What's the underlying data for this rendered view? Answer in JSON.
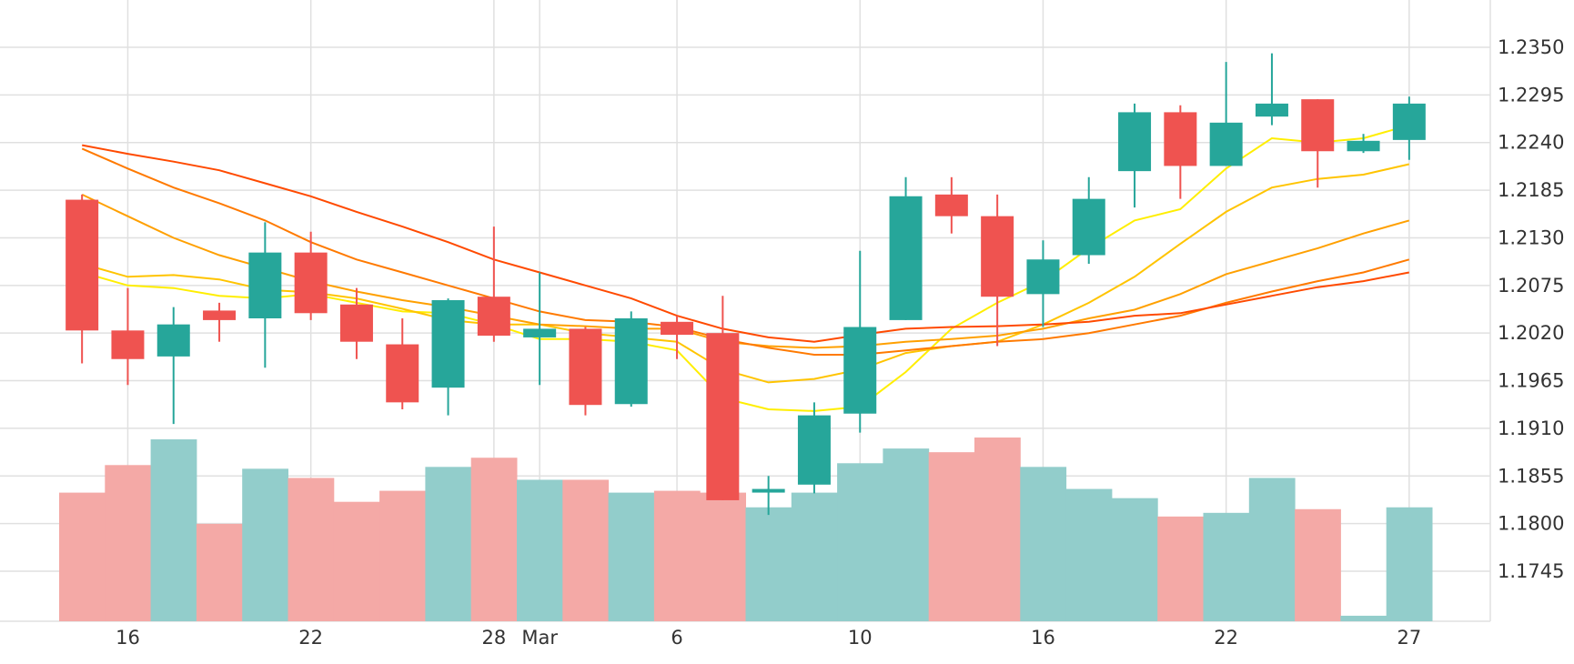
{
  "colors": {
    "up": "#26a69a",
    "down": "#ef5350",
    "volume_up": "#92cdcb",
    "volume_down": "#f4a9a6",
    "grid": "#e0e0e0",
    "text": "#333333"
  },
  "chart_data": {
    "type": "candlestick",
    "title": "",
    "xlabel": "",
    "ylabel": "",
    "ylim": [
      1.168,
      1.238
    ],
    "grid": true,
    "legend": "none",
    "y_ticks": [
      "1.2350",
      "1.2295",
      "1.2240",
      "1.2185",
      "1.2130",
      "1.2075",
      "1.2020",
      "1.1965",
      "1.1910",
      "1.1855",
      "1.1800",
      "1.1745"
    ],
    "x_ticks": [
      {
        "label": "16",
        "index": 1.5
      },
      {
        "label": "22",
        "index": 5.5
      },
      {
        "label": "28",
        "index": 9.5
      },
      {
        "label": "Mar",
        "index": 10.5
      },
      {
        "label": "6",
        "index": 13.5
      },
      {
        "label": "10",
        "index": 17.5
      },
      {
        "label": "16",
        "index": 21.5
      },
      {
        "label": "22",
        "index": 25.5
      },
      {
        "label": "27",
        "index": 29.5
      }
    ],
    "candles": [
      {
        "o": 1.2174,
        "h": 1.218,
        "l": 1.1985,
        "c": 1.2023
      },
      {
        "o": 1.2023,
        "h": 1.2072,
        "l": 1.196,
        "c": 1.199
      },
      {
        "o": 1.1993,
        "h": 1.205,
        "l": 1.1915,
        "c": 1.203
      },
      {
        "o": 1.2046,
        "h": 1.2055,
        "l": 1.201,
        "c": 1.2035
      },
      {
        "o": 1.2037,
        "h": 1.2148,
        "l": 1.198,
        "c": 1.2113
      },
      {
        "o": 1.2113,
        "h": 1.2137,
        "l": 1.2035,
        "c": 1.2043
      },
      {
        "o": 1.2053,
        "h": 1.2072,
        "l": 1.199,
        "c": 1.201
      },
      {
        "o": 1.2007,
        "h": 1.2037,
        "l": 1.1932,
        "c": 1.194
      },
      {
        "o": 1.1957,
        "h": 1.206,
        "l": 1.1925,
        "c": 1.2058
      },
      {
        "o": 1.2062,
        "h": 1.2143,
        "l": 1.201,
        "c": 1.2017
      },
      {
        "o": 1.2015,
        "h": 1.209,
        "l": 1.196,
        "c": 1.2025
      },
      {
        "o": 1.2025,
        "h": 1.2027,
        "l": 1.1925,
        "c": 1.1937
      },
      {
        "o": 1.1938,
        "h": 1.2045,
        "l": 1.1935,
        "c": 1.2037
      },
      {
        "o": 1.2033,
        "h": 1.204,
        "l": 1.199,
        "c": 1.2018
      },
      {
        "o": 1.202,
        "h": 1.2063,
        "l": 1.1827,
        "c": 1.1827
      },
      {
        "o": 1.1837,
        "h": 1.1855,
        "l": 1.181,
        "c": 1.184
      },
      {
        "o": 1.1845,
        "h": 1.194,
        "l": 1.1835,
        "c": 1.1925
      },
      {
        "o": 1.1927,
        "h": 1.2115,
        "l": 1.1905,
        "c": 1.2027
      },
      {
        "o": 1.2035,
        "h": 1.22,
        "l": 1.2035,
        "c": 1.2178
      },
      {
        "o": 1.218,
        "h": 1.22,
        "l": 1.2135,
        "c": 1.2155
      },
      {
        "o": 1.2155,
        "h": 1.218,
        "l": 1.2005,
        "c": 1.2062
      },
      {
        "o": 1.2065,
        "h": 1.2127,
        "l": 1.2027,
        "c": 1.2105
      },
      {
        "o": 1.211,
        "h": 1.22,
        "l": 1.21,
        "c": 1.2175
      },
      {
        "o": 1.2207,
        "h": 1.2285,
        "l": 1.2165,
        "c": 1.2275
      },
      {
        "o": 1.2275,
        "h": 1.2283,
        "l": 1.2175,
        "c": 1.2213
      },
      {
        "o": 1.2213,
        "h": 1.2333,
        "l": 1.2213,
        "c": 1.2263
      },
      {
        "o": 1.227,
        "h": 1.2343,
        "l": 1.226,
        "c": 1.2285
      },
      {
        "o": 1.229,
        "h": 1.229,
        "l": 1.2188,
        "c": 1.223
      },
      {
        "o": 1.223,
        "h": 1.225,
        "l": 1.2228,
        "c": 1.2242
      },
      {
        "o": 1.2243,
        "h": 1.2293,
        "l": 1.222,
        "c": 1.2285
      }
    ],
    "volume_levels": [
      0.7,
      0.85,
      0.99,
      0.53,
      0.83,
      0.78,
      0.65,
      0.71,
      0.84,
      0.89,
      0.77,
      0.77,
      0.7,
      0.71,
      0.7,
      0.62,
      0.7,
      0.86,
      0.94,
      0.92,
      1.0,
      0.84,
      0.72,
      0.67,
      0.57,
      0.59,
      0.78,
      0.61,
      0.03,
      0.62
    ],
    "series": [
      {
        "color": "#ffee00",
        "values": [
          1.209,
          1.2075,
          1.2072,
          1.2063,
          1.206,
          1.2065,
          1.2055,
          1.2045,
          1.2043,
          1.203,
          1.2013,
          1.2013,
          1.201,
          1.2,
          1.1945,
          1.1932,
          1.193,
          1.1935,
          1.1975,
          1.2025,
          1.2055,
          1.208,
          1.2118,
          1.215,
          1.2163,
          1.221,
          1.2245,
          1.224,
          1.2245,
          1.226
        ]
      },
      {
        "color": "#ffc400",
        "values": [
          1.21,
          1.2085,
          1.2087,
          1.2082,
          1.207,
          1.2067,
          1.206,
          1.2048,
          1.2035,
          1.203,
          1.203,
          1.202,
          1.2015,
          1.201,
          1.1978,
          1.1963,
          1.1967,
          1.1978,
          1.1997,
          1.2005,
          1.201,
          1.203,
          1.2055,
          1.2085,
          1.2123,
          1.216,
          1.2188,
          1.2198,
          1.2203,
          1.2215
        ]
      },
      {
        "color": "#ffa000",
        "values": [
          1.218,
          1.2155,
          1.213,
          1.211,
          1.2095,
          1.208,
          1.2068,
          1.2058,
          1.205,
          1.204,
          1.203,
          1.2028,
          1.2025,
          1.2025,
          1.201,
          1.2005,
          1.2003,
          1.2005,
          1.201,
          1.2013,
          1.2017,
          1.2025,
          1.2037,
          1.2047,
          1.2065,
          1.2088,
          1.2103,
          1.2118,
          1.2135,
          1.215
        ]
      },
      {
        "color": "#ff7a00",
        "values": [
          1.2233,
          1.221,
          1.2188,
          1.217,
          1.215,
          1.2125,
          1.2105,
          1.209,
          1.2075,
          1.206,
          1.2045,
          1.2035,
          1.2033,
          1.2027,
          1.2013,
          1.2003,
          1.1995,
          1.1995,
          1.2,
          1.2005,
          1.201,
          1.2013,
          1.202,
          1.203,
          1.204,
          1.2055,
          1.2068,
          1.208,
          1.209,
          1.2105
        ]
      },
      {
        "color": "#ff4a00",
        "values": [
          1.2237,
          1.2227,
          1.2218,
          1.2208,
          1.2193,
          1.2178,
          1.216,
          1.2143,
          1.2125,
          1.2105,
          1.209,
          1.2075,
          1.206,
          1.204,
          1.2025,
          1.2015,
          1.201,
          1.2018,
          1.2025,
          1.2027,
          1.2028,
          1.203,
          1.2033,
          1.204,
          1.2043,
          1.2053,
          1.2063,
          1.2073,
          1.208,
          1.209
        ]
      }
    ]
  }
}
